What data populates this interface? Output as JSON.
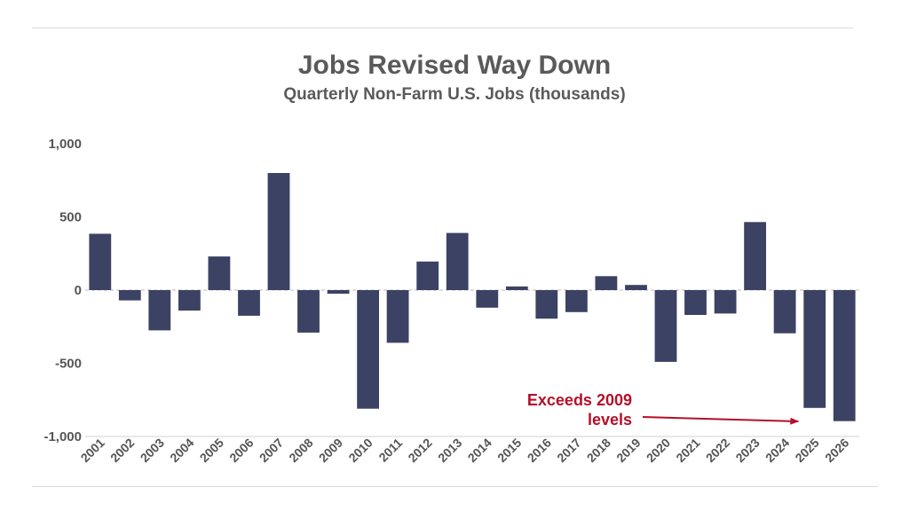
{
  "chart_data": {
    "type": "bar",
    "title": "Jobs Revised Way Down",
    "subtitle": "Quarterly Non-Farm U.S. Jobs (thousands)",
    "xlabel": "",
    "ylabel": "",
    "ylim": [
      -1000,
      1000
    ],
    "yticks": [
      1000,
      500,
      0,
      -500,
      -1000
    ],
    "ytick_labels": [
      "1,000",
      "500",
      "0",
      "-500",
      "-1,000"
    ],
    "grid": false,
    "categories": [
      "2001",
      "2002",
      "2003",
      "2004",
      "2005",
      "2006",
      "2007",
      "2008",
      "2009",
      "2010",
      "2011",
      "2012",
      "2013",
      "2014",
      "2015",
      "2016",
      "2017",
      "2018",
      "2019",
      "2020",
      "2021",
      "2022",
      "2023",
      "2024",
      "2025",
      "2026"
    ],
    "values": [
      385,
      -70,
      -275,
      -140,
      230,
      -175,
      800,
      -290,
      -25,
      -810,
      -360,
      195,
      390,
      -120,
      25,
      -195,
      -150,
      95,
      35,
      -490,
      -170,
      -160,
      465,
      -295,
      -805,
      -895
    ],
    "bar_color": "#3b4263",
    "annotation": {
      "lines": [
        "Exceeds 2009",
        "levels"
      ],
      "color": "#b3102a",
      "target_category": "2025"
    }
  }
}
